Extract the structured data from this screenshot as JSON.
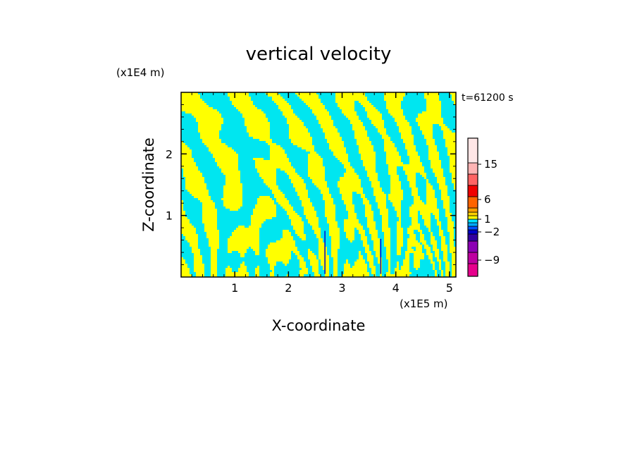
{
  "chart_data": {
    "type": "heatmap",
    "title": "vertical velocity",
    "xlabel": "X-coordinate",
    "ylabel": "Z-coordinate",
    "x_unit": "(x1E5 m)",
    "y_unit": "(x1E4 m)",
    "time_label": "t=61200 s",
    "xlim": [
      0,
      5.12
    ],
    "ylim": [
      0,
      3.0
    ],
    "x_ticks": [
      1,
      2,
      3,
      4,
      5
    ],
    "y_ticks": [
      1,
      2
    ],
    "colorbar": {
      "tick_labels": [
        "15",
        "6",
        "1",
        "−2",
        "−9"
      ],
      "levels": [
        {
          "color": "#e6008c"
        },
        {
          "color": "#be00a0"
        },
        {
          "color": "#8c00b4"
        },
        {
          "color": "#3200a0"
        },
        {
          "color": "#0000c8"
        },
        {
          "color": "#0050ff"
        },
        {
          "color": "#00aaff"
        },
        {
          "color": "#00e6ff"
        },
        {
          "color": "#ffff00"
        },
        {
          "color": "#ffd200"
        },
        {
          "color": "#ffa000"
        },
        {
          "color": "#ff6400"
        },
        {
          "color": "#f00000"
        },
        {
          "color": "#ff6464"
        },
        {
          "color": "#ffb4b4"
        },
        {
          "color": "#ffe6e6"
        }
      ]
    },
    "field_colors": {
      "positive": "#ffff00",
      "negative": "#00e6f0",
      "strong_negative": "#0000c8"
    }
  }
}
